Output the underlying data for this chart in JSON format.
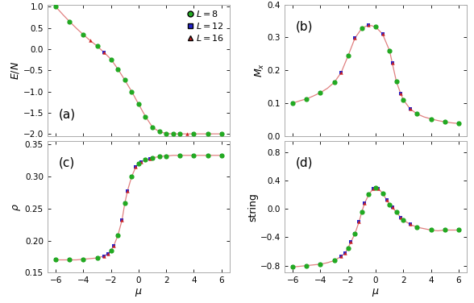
{
  "fig_width": 5.88,
  "fig_height": 3.76,
  "dpi": 100,
  "bg_color": "#ffffff",
  "line_color": "#e08080",
  "colors": {
    "L8": "#22aa22",
    "L12": "#2222cc",
    "L16": "#cc2222"
  },
  "markers": {
    "L8": "o",
    "L12": "s",
    "L16": "^"
  },
  "ms_L8": 4.5,
  "ms_L12": 3.2,
  "ms_L16": 3.2,
  "lw": 0.9,
  "xlabel": "$\\mu$",
  "panels": [
    "(a)",
    "(b)",
    "(c)",
    "(d)"
  ],
  "ylabels": [
    "$E/N$",
    "$M_x$",
    "$\\rho$",
    "string"
  ],
  "ylims": [
    [
      -2.05,
      1.05
    ],
    [
      0.0,
      0.4
    ],
    [
      0.15,
      0.355
    ],
    [
      -0.9,
      0.95
    ]
  ],
  "yticks_a": [
    -2.0,
    -1.5,
    -1.0,
    -0.5,
    0.0,
    0.5,
    1.0
  ],
  "yticks_b": [
    0.0,
    0.1,
    0.2,
    0.3,
    0.4
  ],
  "yticks_c": [
    0.15,
    0.2,
    0.25,
    0.3,
    0.35
  ],
  "yticks_d": [
    -0.8,
    -0.4,
    0.0,
    0.4,
    0.8
  ],
  "xlim": [
    -6.6,
    6.6
  ],
  "xticks": [
    -6,
    -4,
    -2,
    0,
    2,
    4,
    6
  ],
  "mu_line_a": [
    -6.0,
    -5.5,
    -5.0,
    -4.5,
    -4.0,
    -3.5,
    -3.0,
    -2.5,
    -2.0,
    -1.5,
    -1.0,
    -0.5,
    0.0,
    0.5,
    1.0,
    1.5,
    2.0,
    2.5,
    3.0,
    3.5,
    4.0,
    4.5,
    5.0,
    5.5,
    6.0
  ],
  "y_line_a": [
    1.0,
    0.82,
    0.65,
    0.49,
    0.34,
    0.2,
    0.07,
    -0.08,
    -0.24,
    -0.47,
    -0.73,
    -1.0,
    -1.3,
    -1.59,
    -1.84,
    -1.95,
    -1.99,
    -2.0,
    -2.0,
    -2.0,
    -2.0,
    -2.0,
    -2.0,
    -2.0,
    -2.0
  ],
  "mu_line_b": [
    -6.0,
    -5.5,
    -5.0,
    -4.5,
    -4.0,
    -3.5,
    -3.0,
    -2.5,
    -2.0,
    -1.5,
    -1.0,
    -0.5,
    0.0,
    0.5,
    1.0,
    1.2,
    1.5,
    1.8,
    2.0,
    2.5,
    3.0,
    3.5,
    4.0,
    4.5,
    5.0,
    5.5,
    6.0
  ],
  "y_line_b": [
    0.1,
    0.107,
    0.113,
    0.122,
    0.132,
    0.145,
    0.163,
    0.193,
    0.244,
    0.298,
    0.328,
    0.338,
    0.332,
    0.31,
    0.26,
    0.222,
    0.165,
    0.13,
    0.11,
    0.082,
    0.067,
    0.058,
    0.052,
    0.047,
    0.043,
    0.04,
    0.038
  ],
  "mu_line_c": [
    -6.0,
    -5.5,
    -5.0,
    -4.5,
    -4.0,
    -3.5,
    -3.0,
    -2.5,
    -2.2,
    -2.0,
    -1.8,
    -1.5,
    -1.2,
    -1.0,
    -0.8,
    -0.5,
    -0.2,
    0.0,
    0.2,
    0.5,
    0.8,
    1.0,
    1.2,
    1.5,
    1.8,
    2.0,
    2.5,
    3.0,
    3.5,
    4.0,
    4.5,
    5.0,
    5.5,
    6.0
  ],
  "y_line_c": [
    0.17,
    0.17,
    0.17,
    0.17,
    0.171,
    0.172,
    0.173,
    0.176,
    0.18,
    0.185,
    0.192,
    0.208,
    0.232,
    0.258,
    0.278,
    0.3,
    0.315,
    0.32,
    0.323,
    0.326,
    0.328,
    0.329,
    0.33,
    0.331,
    0.332,
    0.332,
    0.333,
    0.333,
    0.333,
    0.333,
    0.333,
    0.333,
    0.333,
    0.333
  ],
  "mu_line_d": [
    -6.0,
    -5.5,
    -5.0,
    -4.5,
    -4.0,
    -3.5,
    -3.0,
    -2.5,
    -2.2,
    -2.0,
    -1.8,
    -1.5,
    -1.2,
    -1.0,
    -0.8,
    -0.5,
    -0.2,
    0.0,
    0.2,
    0.5,
    0.8,
    1.0,
    1.2,
    1.5,
    1.8,
    2.0,
    2.5,
    3.0,
    3.5,
    4.0,
    4.5,
    5.0,
    5.5,
    6.0
  ],
  "y_line_d": [
    -0.82,
    -0.81,
    -0.8,
    -0.79,
    -0.78,
    -0.76,
    -0.73,
    -0.67,
    -0.62,
    -0.55,
    -0.47,
    -0.35,
    -0.18,
    -0.04,
    0.08,
    0.2,
    0.28,
    0.3,
    0.28,
    0.22,
    0.12,
    0.06,
    0.02,
    -0.05,
    -0.12,
    -0.16,
    -0.22,
    -0.26,
    -0.28,
    -0.3,
    -0.31,
    -0.3,
    -0.3,
    -0.3
  ],
  "mu_L8_a": [
    -6.0,
    -5.0,
    -4.0,
    -3.0,
    -2.0,
    -1.5,
    -1.0,
    -0.5,
    0.0,
    0.5,
    1.0,
    1.5,
    2.0,
    2.5,
    3.0,
    4.0,
    5.0,
    6.0
  ],
  "y_L8_a": [
    1.0,
    0.65,
    0.34,
    0.07,
    -0.24,
    -0.47,
    -0.73,
    -1.0,
    -1.3,
    -1.59,
    -1.84,
    -1.95,
    -1.99,
    -2.0,
    -2.0,
    -2.0,
    -2.0,
    -2.0
  ],
  "mu_L12_a": [
    -6.0,
    -5.0,
    -4.0,
    -3.0,
    -2.5,
    -2.0,
    -1.5,
    -1.0,
    -0.5,
    0.0,
    0.5,
    1.0,
    1.5,
    2.0,
    2.5,
    3.0,
    4.0,
    5.0,
    6.0
  ],
  "y_L12_a": [
    1.0,
    0.65,
    0.34,
    0.07,
    -0.08,
    -0.24,
    -0.47,
    -0.73,
    -1.0,
    -1.3,
    -1.59,
    -1.84,
    -1.95,
    -1.99,
    -2.0,
    -2.0,
    -2.0,
    -2.0,
    -2.0
  ],
  "mu_L16_a": [
    -6.0,
    -5.0,
    -4.0,
    -3.5,
    -3.0,
    -2.5,
    -2.0,
    -1.5,
    -1.0,
    -0.5,
    0.0,
    0.5,
    1.0,
    1.5,
    2.0,
    2.5,
    3.0,
    3.5,
    4.0,
    5.0,
    6.0
  ],
  "y_L16_a": [
    1.0,
    0.65,
    0.34,
    0.2,
    0.07,
    -0.08,
    -0.24,
    -0.47,
    -0.73,
    -1.0,
    -1.3,
    -1.59,
    -1.84,
    -1.95,
    -1.99,
    -2.0,
    -2.0,
    -2.0,
    -2.0,
    -2.0,
    -2.0
  ],
  "mu_L8_b": [
    -6.0,
    -5.0,
    -4.0,
    -3.0,
    -2.0,
    -1.0,
    0.0,
    1.0,
    1.5,
    2.0,
    3.0,
    4.0,
    5.0,
    6.0
  ],
  "y_L8_b": [
    0.1,
    0.113,
    0.132,
    0.163,
    0.244,
    0.328,
    0.332,
    0.26,
    0.165,
    0.11,
    0.067,
    0.052,
    0.043,
    0.038
  ],
  "mu_L12_b": [
    -6.0,
    -5.0,
    -4.0,
    -3.0,
    -2.5,
    -2.0,
    -1.5,
    -1.0,
    -0.5,
    0.0,
    0.5,
    1.0,
    1.2,
    1.5,
    1.8,
    2.0,
    2.5,
    3.0,
    4.0,
    5.0,
    6.0
  ],
  "y_L12_b": [
    0.1,
    0.113,
    0.132,
    0.163,
    0.193,
    0.244,
    0.298,
    0.328,
    0.338,
    0.332,
    0.31,
    0.26,
    0.222,
    0.165,
    0.13,
    0.11,
    0.082,
    0.067,
    0.052,
    0.043,
    0.038
  ],
  "mu_L16_b": [
    -6.0,
    -5.0,
    -4.0,
    -3.0,
    -2.5,
    -2.0,
    -1.5,
    -1.0,
    -0.5,
    0.0,
    0.5,
    1.0,
    1.2,
    1.5,
    1.8,
    2.0,
    2.5,
    3.0,
    4.0,
    5.0,
    6.0
  ],
  "y_L16_b": [
    0.1,
    0.113,
    0.132,
    0.163,
    0.193,
    0.244,
    0.298,
    0.328,
    0.338,
    0.332,
    0.31,
    0.26,
    0.222,
    0.165,
    0.13,
    0.11,
    0.082,
    0.067,
    0.052,
    0.043,
    0.038
  ],
  "mu_L8_c": [
    -6.0,
    -5.0,
    -4.0,
    -3.0,
    -2.0,
    -1.5,
    -1.0,
    -0.5,
    0.0,
    0.5,
    1.0,
    1.5,
    2.0,
    3.0,
    4.0,
    5.0,
    6.0
  ],
  "y_L8_c": [
    0.17,
    0.17,
    0.171,
    0.173,
    0.185,
    0.208,
    0.258,
    0.3,
    0.32,
    0.326,
    0.329,
    0.331,
    0.332,
    0.333,
    0.333,
    0.333,
    0.333
  ],
  "mu_L12_c": [
    -6.0,
    -5.0,
    -4.0,
    -3.0,
    -2.5,
    -2.2,
    -2.0,
    -1.8,
    -1.5,
    -1.2,
    -1.0,
    -0.8,
    -0.5,
    -0.2,
    0.0,
    0.2,
    0.5,
    0.8,
    1.0,
    1.5,
    2.0,
    3.0,
    4.0,
    5.0,
    6.0
  ],
  "y_L12_c": [
    0.17,
    0.17,
    0.171,
    0.173,
    0.176,
    0.18,
    0.185,
    0.192,
    0.208,
    0.232,
    0.258,
    0.278,
    0.3,
    0.315,
    0.32,
    0.323,
    0.326,
    0.328,
    0.329,
    0.331,
    0.332,
    0.333,
    0.333,
    0.333,
    0.333
  ],
  "mu_L16_c": [
    -6.0,
    -5.0,
    -4.0,
    -3.0,
    -2.5,
    -2.2,
    -2.0,
    -1.8,
    -1.5,
    -1.2,
    -1.0,
    -0.8,
    -0.5,
    -0.2,
    0.0,
    0.2,
    0.5,
    0.8,
    1.0,
    1.5,
    2.0,
    3.0,
    4.0,
    5.0,
    6.0
  ],
  "y_L16_c": [
    0.17,
    0.17,
    0.171,
    0.173,
    0.176,
    0.18,
    0.185,
    0.192,
    0.208,
    0.232,
    0.258,
    0.278,
    0.3,
    0.315,
    0.32,
    0.323,
    0.326,
    0.328,
    0.329,
    0.331,
    0.332,
    0.333,
    0.333,
    0.333,
    0.333
  ],
  "mu_L8_d": [
    -6.0,
    -5.0,
    -4.0,
    -3.0,
    -2.0,
    -1.5,
    -1.0,
    -0.5,
    0.0,
    0.5,
    1.0,
    1.5,
    2.0,
    3.0,
    4.0,
    5.0,
    6.0
  ],
  "y_L8_d": [
    -0.82,
    -0.8,
    -0.78,
    -0.73,
    -0.55,
    -0.35,
    -0.04,
    0.2,
    0.3,
    0.22,
    0.06,
    -0.05,
    -0.16,
    -0.26,
    -0.3,
    -0.3,
    -0.3
  ],
  "mu_L12_d": [
    -6.0,
    -5.0,
    -4.0,
    -3.0,
    -2.5,
    -2.2,
    -2.0,
    -1.8,
    -1.5,
    -1.2,
    -1.0,
    -0.8,
    -0.5,
    -0.2,
    0.0,
    0.2,
    0.5,
    0.8,
    1.0,
    1.2,
    1.5,
    1.8,
    2.0,
    2.5,
    3.0,
    4.0,
    5.0,
    6.0
  ],
  "y_L12_d": [
    -0.82,
    -0.8,
    -0.78,
    -0.73,
    -0.67,
    -0.62,
    -0.55,
    -0.47,
    -0.35,
    -0.18,
    -0.04,
    0.08,
    0.2,
    0.28,
    0.3,
    0.28,
    0.22,
    0.12,
    0.06,
    0.02,
    -0.05,
    -0.12,
    -0.16,
    -0.22,
    -0.26,
    -0.3,
    -0.3,
    -0.3
  ],
  "mu_L16_d": [
    -6.0,
    -5.0,
    -4.0,
    -3.0,
    -2.5,
    -2.2,
    -2.0,
    -1.8,
    -1.5,
    -1.2,
    -1.0,
    -0.8,
    -0.5,
    -0.2,
    0.0,
    0.2,
    0.5,
    0.8,
    1.0,
    1.2,
    1.5,
    1.8,
    2.0,
    2.5,
    3.0,
    4.0,
    5.0,
    6.0
  ],
  "y_L16_d": [
    -0.82,
    -0.8,
    -0.78,
    -0.73,
    -0.67,
    -0.62,
    -0.55,
    -0.47,
    -0.35,
    -0.18,
    -0.04,
    0.08,
    0.2,
    0.28,
    0.3,
    0.28,
    0.22,
    0.12,
    0.06,
    0.02,
    -0.05,
    -0.12,
    -0.16,
    -0.22,
    -0.26,
    -0.3,
    -0.3,
    -0.3
  ]
}
